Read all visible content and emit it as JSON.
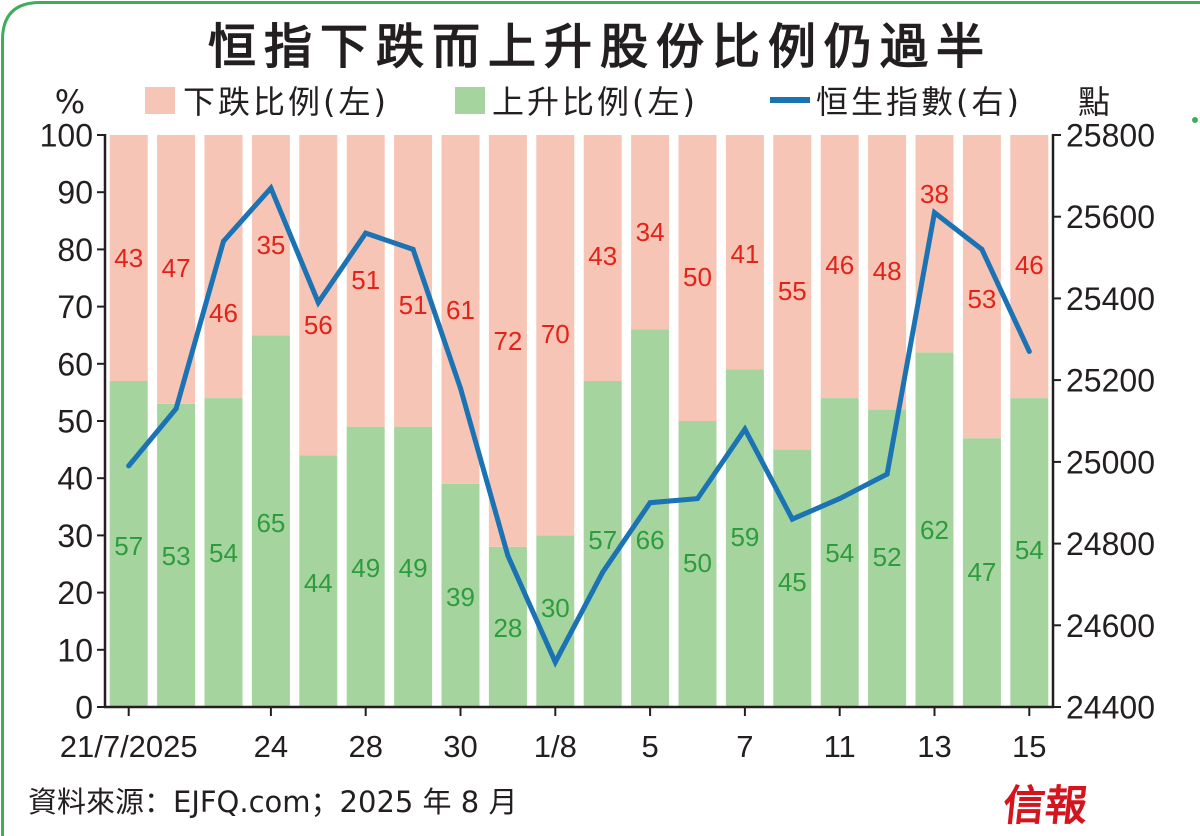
{
  "chart_data": {
    "type": "bar",
    "stacked": true,
    "title": "恒指下跌而上升股份比例仍過半",
    "categories": [
      "21/7/2025",
      "",
      "",
      "24",
      "",
      "28",
      "",
      "30",
      "",
      "1/8",
      "",
      "5",
      "",
      "7",
      "",
      "11",
      "",
      "13",
      "",
      "15"
    ],
    "y_left": {
      "label": "%",
      "lim": [
        0,
        100
      ],
      "ticks": [
        0,
        10,
        20,
        30,
        40,
        50,
        60,
        70,
        80,
        90,
        100
      ]
    },
    "y_right": {
      "label": "點",
      "lim": [
        24400,
        25800
      ],
      "ticks": [
        24400,
        24600,
        24800,
        25000,
        25200,
        25400,
        25600,
        25800
      ]
    },
    "series": [
      {
        "name": "下跌比例(左)",
        "type": "bar",
        "axis": "left",
        "color": "#f6c5b5",
        "label_color": "#e2231a",
        "values": [
          43,
          47,
          46,
          35,
          56,
          51,
          51,
          61,
          72,
          70,
          43,
          34,
          50,
          41,
          55,
          46,
          48,
          38,
          53,
          46
        ]
      },
      {
        "name": "上升比例(左)",
        "type": "bar",
        "axis": "left",
        "color": "#a6d49e",
        "label_color": "#2e9c3e",
        "values": [
          57,
          53,
          54,
          65,
          44,
          49,
          49,
          39,
          28,
          30,
          57,
          66,
          50,
          59,
          45,
          54,
          52,
          62,
          47,
          54
        ]
      },
      {
        "name": "恒生指數(右)",
        "type": "line",
        "axis": "right",
        "color": "#1b73b4",
        "values": [
          24990,
          25130,
          25540,
          25670,
          25390,
          25560,
          25520,
          25180,
          24770,
          24510,
          24730,
          24900,
          24910,
          25080,
          24860,
          24910,
          24970,
          25610,
          25520,
          25270
        ]
      }
    ],
    "legend": "top",
    "grid": false
  },
  "source": "資料來源：EJFQ.com；2025 年 8 月",
  "logo": "信報",
  "colors": {
    "frame": "#3fae5b",
    "axis": "#231f20",
    "logo": "#d6141e"
  }
}
